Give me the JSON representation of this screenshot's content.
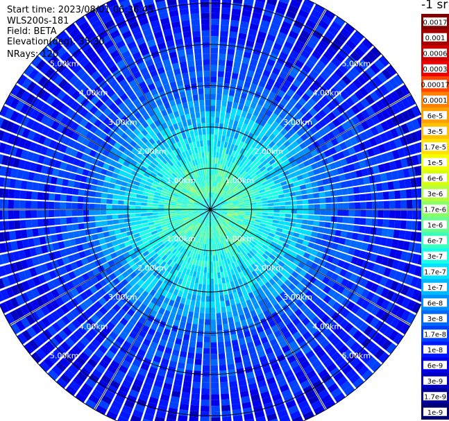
{
  "header": {
    "start_time": "Start time: 2023/08/01 06:36:45",
    "instrument": "WLS200s-181",
    "field": "Field: BETA",
    "elevation": "Elevation(deg): 35.30",
    "nrays": "NRays: 120"
  },
  "colorbar": {
    "unit_label": "-1 sr",
    "labels": [
      "0.0017",
      "0.001",
      "0.0006",
      "0.0003",
      "0.00017",
      "0.0001",
      "6e-5",
      "3e-5",
      "1.7e-5",
      "1e-5",
      "6e-6",
      "3e-6",
      "1.7e-6",
      "1e-6",
      "6e-7",
      "3e-7",
      "1.7e-7",
      "1e-7",
      "6e-8",
      "3e-8",
      "1.7e-8",
      "1e-8",
      "6e-9",
      "3e-9",
      "1.7e-9",
      "1e-9"
    ],
    "colors": [
      "#800000",
      "#a40000",
      "#c80000",
      "#ee0000",
      "#ff4500",
      "#ff7f00",
      "#ffa000",
      "#ffc000",
      "#ffe000",
      "#f4ff00",
      "#d8ff10",
      "#b4ff3a",
      "#8cff66",
      "#66ff90",
      "#3cffbd",
      "#14ffe8",
      "#00e0ff",
      "#00b8ff",
      "#0090ff",
      "#0068ff",
      "#0040ff",
      "#0018ff",
      "#0000e8",
      "#0000c0",
      "#000098",
      "#000070"
    ]
  },
  "chart_data": {
    "type": "heatmap",
    "projection": "polar PPI",
    "field": "BETA",
    "elevation_deg": 35.3,
    "n_rays": 120,
    "range_rings_km": [
      1,
      2,
      3,
      4,
      5
    ],
    "range_ring_labels": [
      "1.00km",
      "2.00km",
      "3.00km",
      "4.00km",
      "5.00km"
    ],
    "max_range_km": 5.6,
    "spokes_deg": [
      0,
      30,
      60,
      90,
      120,
      150
    ],
    "colorscale": "log",
    "value_range": [
      1e-09,
      0.0017
    ],
    "radial_profile": [
      {
        "range_km": 0.0,
        "beta": 1.7e-07
      },
      {
        "range_km": 0.5,
        "beta": 1e-06
      },
      {
        "range_km": 1.0,
        "beta": 6e-07
      },
      {
        "range_km": 1.5,
        "beta": 3e-07
      },
      {
        "range_km": 2.0,
        "beta": 1.7e-07
      },
      {
        "range_km": 2.5,
        "beta": 1e-07
      },
      {
        "range_km": 3.0,
        "beta": 3e-08
      },
      {
        "range_km": 4.0,
        "beta": 1.7e-08
      },
      {
        "range_km": 5.0,
        "beta": 1e-08
      },
      {
        "range_km": 5.6,
        "beta": 1e-08
      }
    ]
  }
}
